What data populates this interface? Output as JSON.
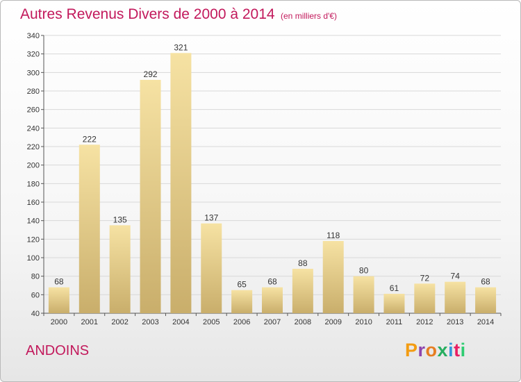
{
  "title": "Autres Revenus Divers de 2000 à 2014",
  "subtitle": "(en milliers d'€)",
  "commune": "ANDOINS",
  "logo": {
    "letters": [
      "P",
      "r",
      "o",
      "x",
      "i",
      "t",
      "i"
    ]
  },
  "colors": {
    "title": "#c2185b",
    "bar_light": "#f6e2a3",
    "bar_dark": "#c9ae6b",
    "grid": "#d8d8d8",
    "logo": [
      "#f39c12",
      "#8e44ad",
      "#e67e22",
      "#27ae60",
      "#3498db",
      "#e91e63",
      "#2ecc71"
    ]
  },
  "chart_data": {
    "type": "bar",
    "categories": [
      "2000",
      "2001",
      "2002",
      "2003",
      "2004",
      "2005",
      "2006",
      "2007",
      "2008",
      "2009",
      "2010",
      "2011",
      "2012",
      "2013",
      "2014"
    ],
    "values": [
      68,
      222,
      135,
      292,
      321,
      137,
      65,
      68,
      88,
      118,
      80,
      61,
      72,
      74,
      68
    ],
    "ylim": [
      40,
      340
    ],
    "yticks": [
      40,
      60,
      80,
      100,
      120,
      140,
      160,
      180,
      200,
      220,
      240,
      260,
      280,
      300,
      320,
      340
    ],
    "grid": true,
    "data_labels": true
  }
}
